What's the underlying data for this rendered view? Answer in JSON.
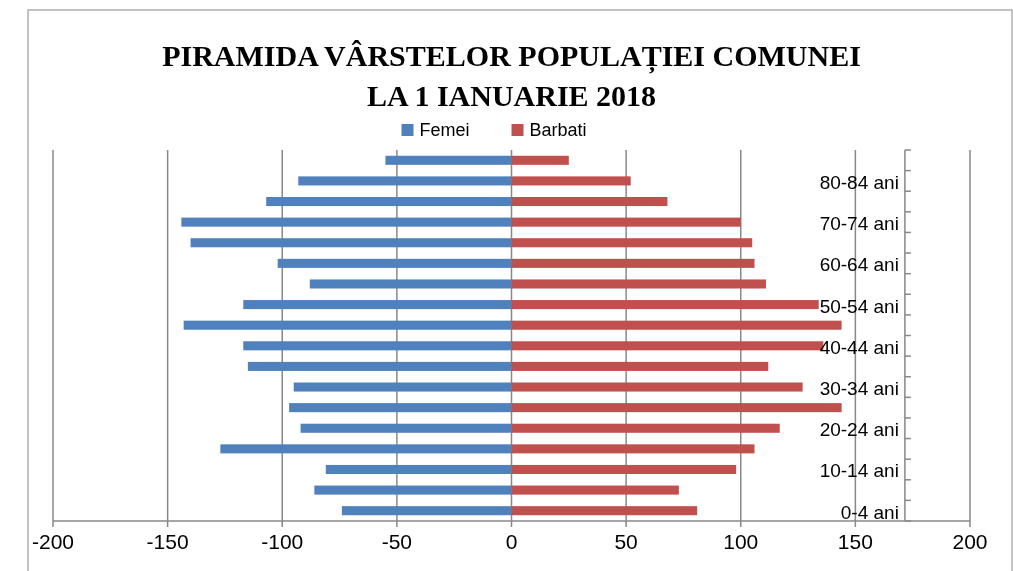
{
  "chart_data": {
    "type": "bar",
    "orientation": "horizontal",
    "stacked": true,
    "title": "PIRAMIDA VÂRSTELOR POPULAȚIEI COMUNEI\nLA 1 IANUARIE 2018",
    "categories": [
      null,
      "80-84 ani",
      null,
      "70-74 ani",
      null,
      "60-64 ani",
      null,
      "50-54 ani",
      null,
      "40-44 ani",
      null,
      "30-34 ani",
      null,
      "20-24 ani",
      null,
      "10-14 ani",
      null,
      "0-4 ani"
    ],
    "series": [
      {
        "name": "Femei",
        "color": "#4f81bd",
        "values": [
          -55,
          -93,
          -107,
          -144,
          -140,
          -102,
          -88,
          -117,
          -143,
          -117,
          -115,
          -95,
          -97,
          -92,
          -127,
          -81,
          -86,
          -74
        ]
      },
      {
        "name": "Barbati",
        "color": "#c0504d",
        "values": [
          25,
          52,
          68,
          100,
          105,
          106,
          111,
          134,
          144,
          136,
          112,
          127,
          144,
          117,
          106,
          98,
          73,
          81
        ]
      }
    ],
    "xlim": [
      -200,
      200
    ],
    "xticks": [
      -200,
      -150,
      -100,
      -50,
      0,
      50,
      100,
      150,
      200
    ],
    "grid": "x",
    "legend": "top"
  }
}
